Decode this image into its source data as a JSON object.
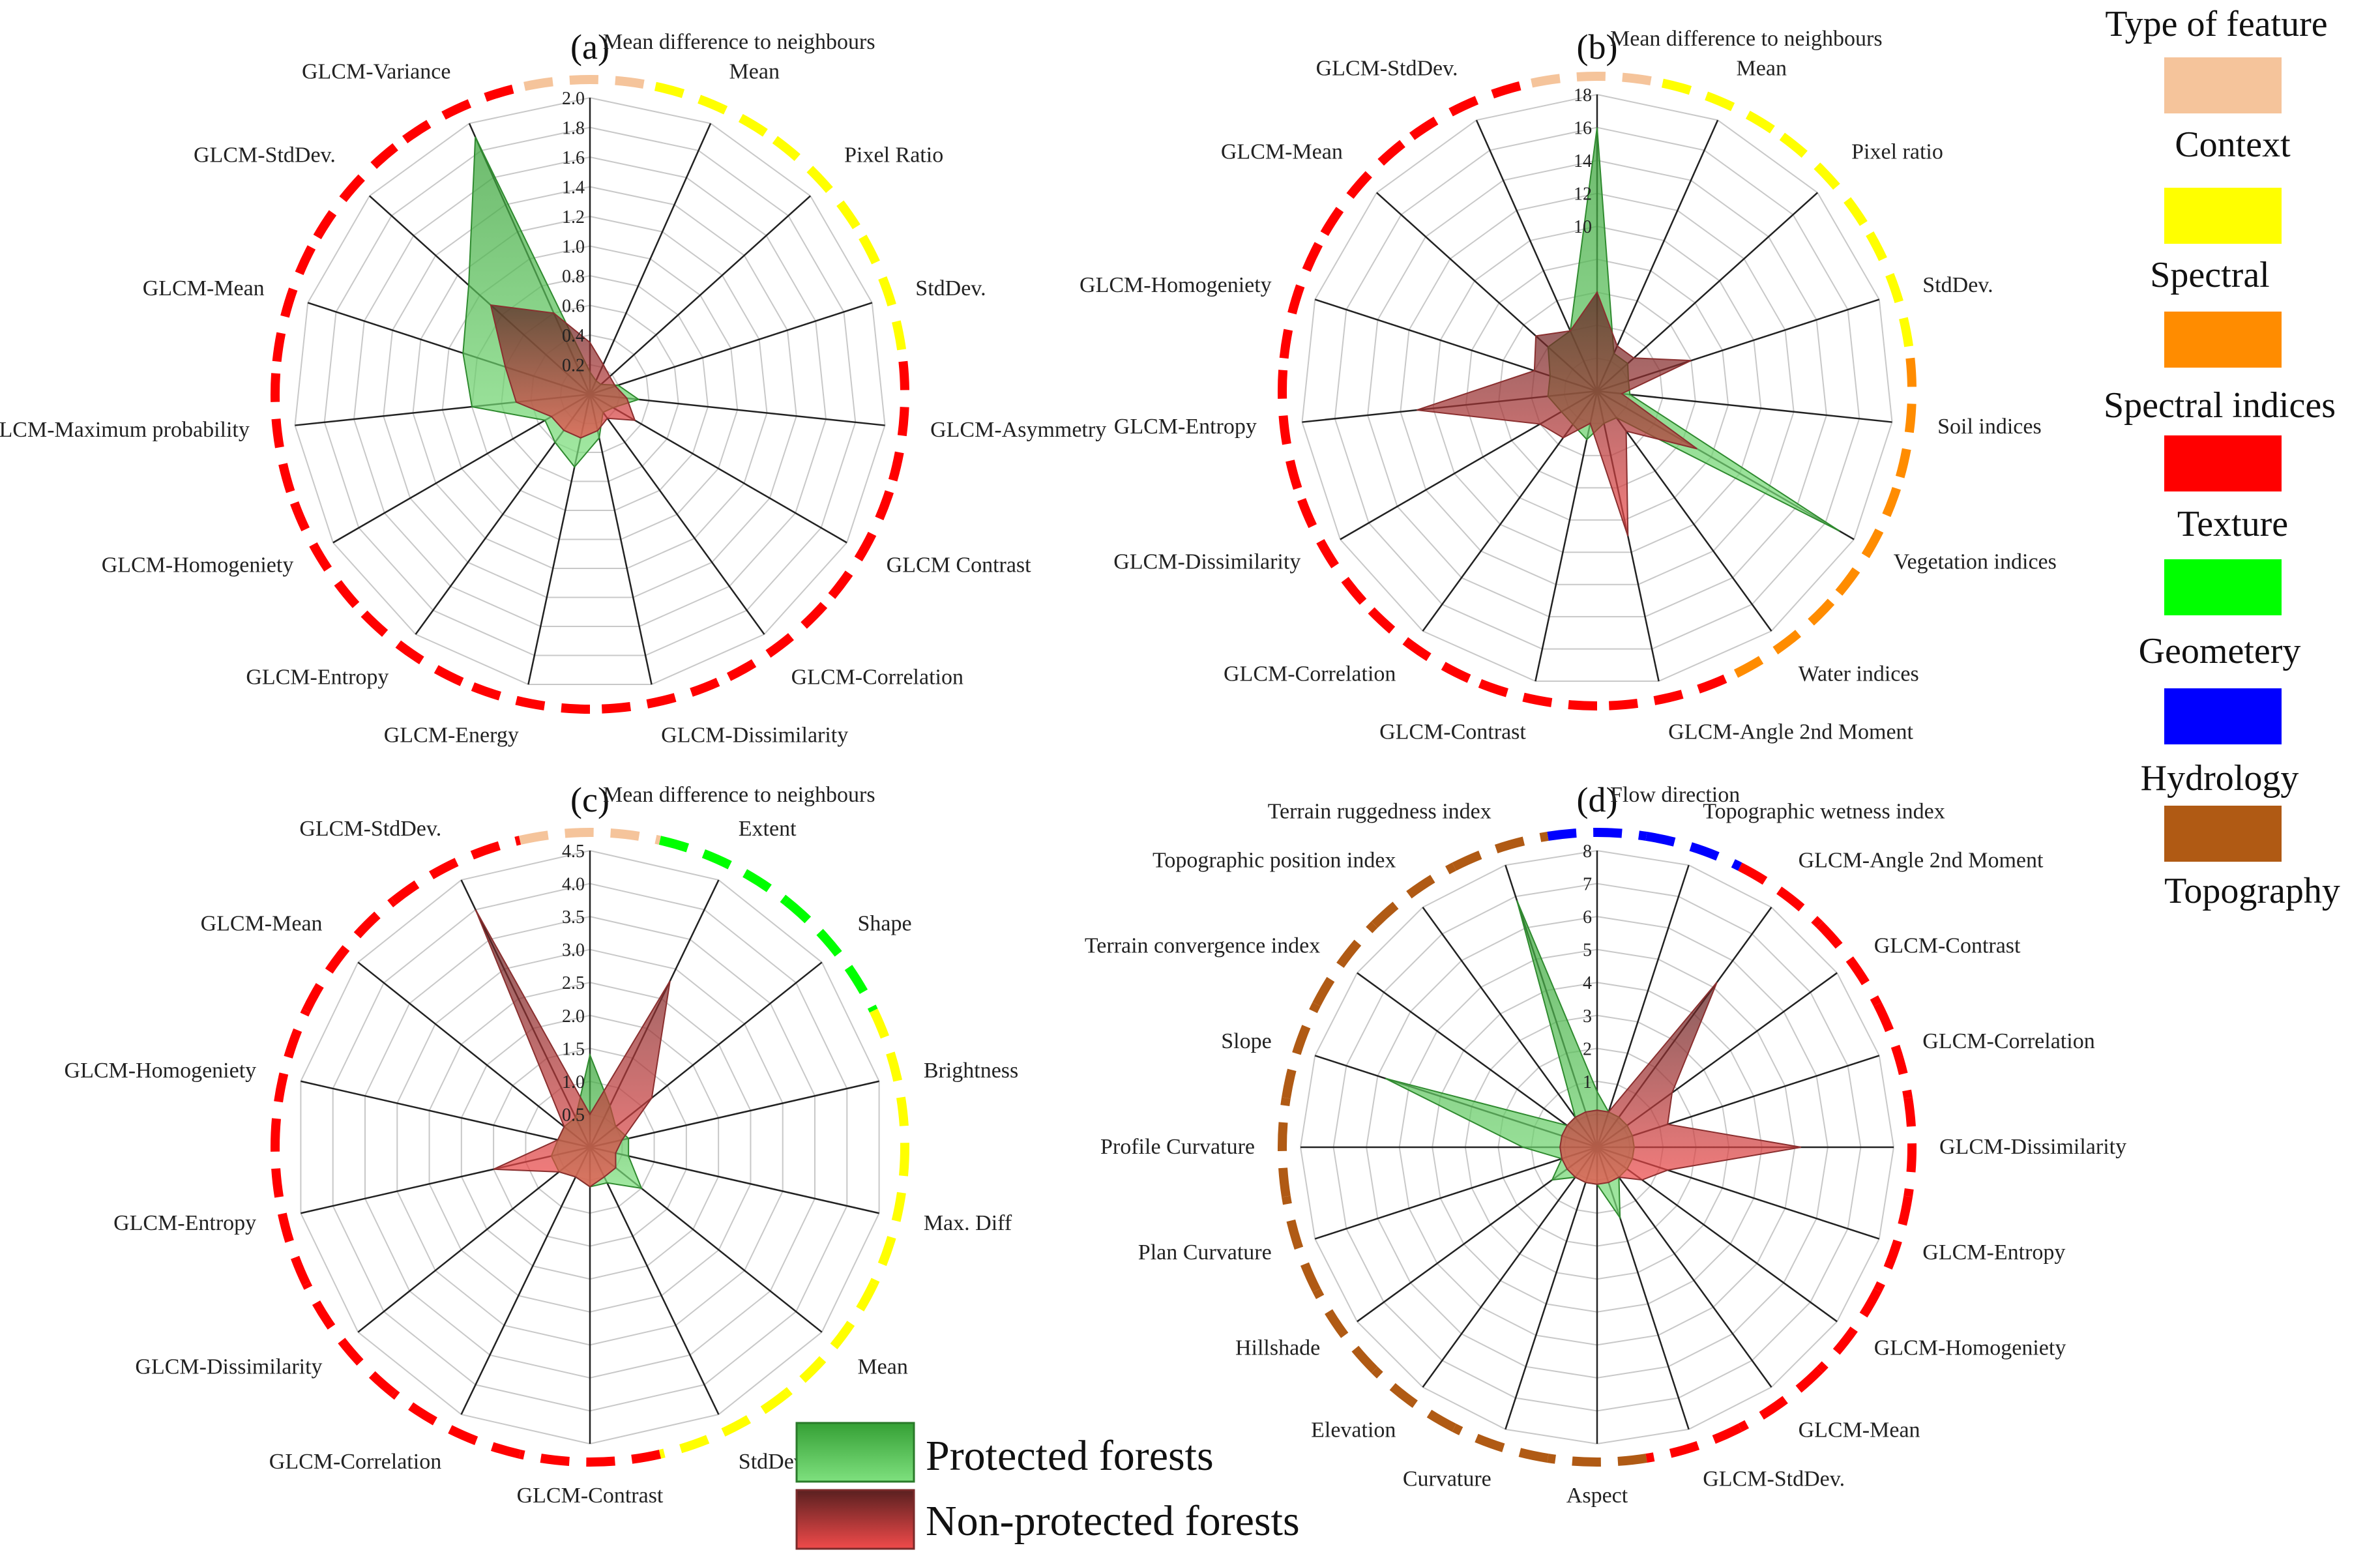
{
  "type_legend": {
    "title": "Type of feature",
    "items": [
      {
        "key": "context",
        "label": "Context",
        "color": "#f5c49b"
      },
      {
        "key": "spectral",
        "label": "Spectral",
        "color": "#ffff00"
      },
      {
        "key": "spectral_indices",
        "label": "Spectral indices",
        "color": "#ff8c00"
      },
      {
        "key": "texture",
        "label": "Texture",
        "color": "#ff0000"
      },
      {
        "key": "geometry",
        "label": "Geometery",
        "color": "#00ff00"
      },
      {
        "key": "hydrology",
        "label": "Hydrology",
        "color": "#0000ff"
      },
      {
        "key": "topography",
        "label": "Topography",
        "color": "#b05a14"
      }
    ]
  },
  "series_legend": {
    "items": [
      {
        "key": "protected",
        "label": "Protected forests",
        "color": "#3cb43c"
      },
      {
        "key": "nonprotected",
        "label": "Non-protected forests",
        "color": "#e84848"
      }
    ]
  },
  "chart_data": [
    {
      "type": "radar",
      "label": "(a)",
      "rmax": 2.0,
      "ticks": [
        "0.2",
        "0.4",
        "0.6",
        "0.8",
        "1.0",
        "1.2",
        "1.4",
        "1.6",
        "1.8",
        "2.0"
      ],
      "axes": [
        {
          "label": "Mean difference to neighbours",
          "group": "context"
        },
        {
          "label": "Mean",
          "group": "spectral"
        },
        {
          "label": "Pixel Ratio",
          "group": "spectral"
        },
        {
          "label": "StdDev.",
          "group": "spectral"
        },
        {
          "label": "GLCM-Asymmetry",
          "group": "texture"
        },
        {
          "label": "GLCM Contrast",
          "group": "texture"
        },
        {
          "label": "GLCM-Correlation",
          "group": "texture"
        },
        {
          "label": "GLCM-Dissimilarity",
          "group": "texture"
        },
        {
          "label": "GLCM-Energy",
          "group": "texture"
        },
        {
          "label": "GLCM-Entropy",
          "group": "texture"
        },
        {
          "label": "GLCM-Homogeniety",
          "group": "texture"
        },
        {
          "label": "GLCM-Maximum probability",
          "group": "texture"
        },
        {
          "label": "GLCM-Mean",
          "group": "texture"
        },
        {
          "label": "GLCM-StdDev.",
          "group": "texture"
        },
        {
          "label": "GLCM-Variance",
          "group": "texture"
        }
      ],
      "series": [
        {
          "name": "Protected forests",
          "values": [
            0.15,
            0.1,
            0.1,
            0.2,
            0.33,
            0.18,
            0.15,
            0.3,
            0.5,
            0.4,
            0.35,
            0.8,
            0.9,
            1.1,
            1.9
          ]
        },
        {
          "name": "Non-protected forests",
          "values": [
            0.35,
            0.22,
            0.18,
            0.18,
            0.25,
            0.35,
            0.2,
            0.25,
            0.3,
            0.3,
            0.3,
            0.5,
            0.6,
            0.9,
            0.6
          ]
        }
      ]
    },
    {
      "type": "radar",
      "label": "(b)",
      "rmax": 18,
      "ticks": [
        "",
        "",
        "",
        "",
        "10",
        "12",
        "14",
        "16",
        "18"
      ],
      "axes": [
        {
          "label": "Mean difference to neighbours",
          "group": "context"
        },
        {
          "label": "Mean",
          "group": "spectral"
        },
        {
          "label": "Pixel ratio",
          "group": "spectral"
        },
        {
          "label": "StdDev.",
          "group": "spectral"
        },
        {
          "label": "Soil indices",
          "group": "spectral_indices"
        },
        {
          "label": "Vegetation indices",
          "group": "spectral_indices"
        },
        {
          "label": "Water indices",
          "group": "spectral_indices"
        },
        {
          "label": "GLCM-Angle 2nd Moment",
          "group": "texture"
        },
        {
          "label": "GLCM-Contrast",
          "group": "texture"
        },
        {
          "label": "GLCM-Correlation",
          "group": "texture"
        },
        {
          "label": "GLCM-Dissimilarity",
          "group": "texture"
        },
        {
          "label": "GLCM-Entropy",
          "group": "texture"
        },
        {
          "label": "GLCM-Homogeniety",
          "group": "texture"
        },
        {
          "label": "GLCM-Mean",
          "group": "texture"
        },
        {
          "label": "GLCM-StdDev.",
          "group": "texture"
        }
      ],
      "series": [
        {
          "name": "Protected forests",
          "values": [
            16,
            2.5,
            2.5,
            2,
            2,
            17,
            2,
            2,
            3,
            2.5,
            2.5,
            3,
            3,
            4,
            4
          ]
        },
        {
          "name": "Non-protected forests",
          "values": [
            6,
            3,
            3,
            6,
            1.5,
            7,
            3,
            9,
            2,
            3.5,
            4,
            11,
            4,
            5,
            4
          ]
        }
      ]
    },
    {
      "type": "radar",
      "label": "(c)",
      "rmax": 4.5,
      "ticks": [
        "0.5",
        "1.0",
        "1.5",
        "2.0",
        "2.5",
        "3.0",
        "3.5",
        "4.0",
        "4.5"
      ],
      "axes": [
        {
          "label": "Mean difference to neighbours",
          "group": "context"
        },
        {
          "label": "Extent",
          "group": "geometry"
        },
        {
          "label": "Shape",
          "group": "geometry"
        },
        {
          "label": "Brightness",
          "group": "spectral"
        },
        {
          "label": "Max. Diff",
          "group": "spectral"
        },
        {
          "label": "Mean",
          "group": "spectral"
        },
        {
          "label": "StdDev.",
          "group": "spectral"
        },
        {
          "label": "GLCM-Contrast",
          "group": "texture"
        },
        {
          "label": "GLCM-Correlation",
          "group": "texture"
        },
        {
          "label": "GLCM-Dissimilarity",
          "group": "texture"
        },
        {
          "label": "GLCM-Entropy",
          "group": "texture"
        },
        {
          "label": "GLCM-Homogeniety",
          "group": "texture"
        },
        {
          "label": "GLCM-Mean",
          "group": "texture"
        },
        {
          "label": "GLCM-StdDev."
        }
      ],
      "series": [
        {
          "name": "Protected forests",
          "values": [
            1.4,
            0.7,
            0.5,
            0.6,
            0.6,
            1.0,
            0.6,
            0.6,
            0.5,
            0.6,
            0.6,
            0.5,
            0.5,
            0.5
          ]
        },
        {
          "name": "Non-protected forests",
          "values": [
            0.5,
            2.8,
            1.2,
            0.5,
            0.4,
            0.5,
            0.5,
            0.6,
            0.5,
            0.6,
            1.5,
            0.5,
            0.5,
            4.0
          ]
        }
      ]
    },
    {
      "type": "radar",
      "label": "(d)",
      "rmax": 8,
      "ticks": [
        "",
        "1",
        "2",
        "3",
        "4",
        "5",
        "6",
        "7",
        "8"
      ],
      "axes": [
        {
          "label": "Flow direction",
          "group": "hydrology"
        },
        {
          "label": "Topographic wetness index",
          "group": "hydrology"
        },
        {
          "label": "GLCM-Angle 2nd Moment",
          "group": "texture"
        },
        {
          "label": "GLCM-Contrast",
          "group": "texture"
        },
        {
          "label": "GLCM-Correlation",
          "group": "texture"
        },
        {
          "label": "GLCM-Dissimilarity",
          "group": "texture"
        },
        {
          "label": "GLCM-Entropy",
          "group": "texture"
        },
        {
          "label": "GLCM-Homogeniety",
          "group": "texture"
        },
        {
          "label": "GLCM-Mean",
          "group": "texture"
        },
        {
          "label": "GLCM-StdDev.",
          "group": "texture"
        },
        {
          "label": "Aspect",
          "group": "topography"
        },
        {
          "label": "Curvature",
          "group": "topography"
        },
        {
          "label": "Elevation",
          "group": "topography"
        },
        {
          "label": "Hillshade",
          "group": "topography"
        },
        {
          "label": "Plan Curvature",
          "group": "topography"
        },
        {
          "label": "Profile Curvature",
          "group": "topography"
        },
        {
          "label": "Slope",
          "group": "topography"
        },
        {
          "label": "Terrain convergence index",
          "group": "topography"
        },
        {
          "label": "Topographic position index",
          "group": "topography"
        },
        {
          "label": "Terrain ruggedness index",
          "group": "topography"
        }
      ],
      "series": [
        {
          "name": "Protected forests",
          "values": [
            1.5,
            1.0,
            1.0,
            1.0,
            1.0,
            1.0,
            1.0,
            1.0,
            1.0,
            2.0,
            1.0,
            1.0,
            1.0,
            1.5,
            1.0,
            2.0,
            6.0,
            1.0,
            1.0,
            7.0
          ]
        },
        {
          "name": "Non-protected forests",
          "values": [
            1.0,
            1.0,
            5.5,
            2.5,
            2.0,
            5.5,
            2.0,
            1.5,
            1.0,
            1.0,
            1.0,
            1.0,
            1.0,
            1.0,
            1.0,
            1.0,
            1.0,
            1.0,
            1.0,
            1.0
          ]
        }
      ]
    }
  ]
}
